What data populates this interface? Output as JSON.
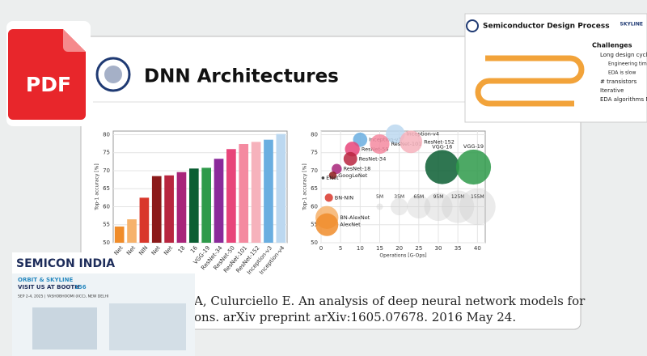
{
  "pdf_icon": {
    "label": "PDF"
  },
  "slide": {
    "title": "DNN Architectures",
    "citation": [
      "A, Culurciello E. An analysis of deep neural network models for",
      "ons. arXiv preprint arXiv:1605.07678. 2016 May 24."
    ]
  },
  "chart_data": [
    {
      "type": "bar",
      "ylabel": "Top-1 accuracy [%]",
      "categories": [
        "Net",
        "Net",
        "NIN",
        "Net",
        "Net",
        "18",
        "16",
        "VGG-19",
        "ResNet-34",
        "ResNet-50",
        "ResNet-101",
        "ResNet-152",
        "Inception-v3",
        "Inception-v4"
      ],
      "values": [
        54.5,
        56.5,
        62.5,
        68.5,
        68.7,
        69.6,
        70.6,
        70.8,
        73.3,
        76.0,
        77.4,
        78.0,
        78.6,
        80.2
      ],
      "colors": [
        "#f08c2a",
        "#f6b26b",
        "#d9372b",
        "#8b1a1a",
        "#b8263f",
        "#a8247a",
        "#0b5e33",
        "#2e9a4a",
        "#8a2a9a",
        "#e8457a",
        "#f48aa0",
        "#f6b2bc",
        "#6aaee0",
        "#bcd8f0"
      ],
      "ylim": [
        50,
        81
      ],
      "yticks": [
        50,
        55,
        60,
        65,
        70,
        75,
        80
      ],
      "grid": true
    },
    {
      "type": "bubble",
      "xlabel": "Operations [G-Ops]",
      "ylabel": "Top-1 accuracy [%]",
      "points": [
        "Inception-v3",
        "Inception-v4",
        "ResNet-50",
        "ResNet-101",
        "ResNet-152",
        "ResNet-34",
        "ResNet-18",
        "GoogLeNet",
        "ENet",
        "BN-NIN",
        "VGG-16",
        "VGG-19",
        "BN-AlexNet",
        "AlexNet"
      ],
      "x": [
        10,
        19,
        8,
        15,
        23,
        7.5,
        4,
        3,
        0.5,
        2,
        31,
        39,
        1.5,
        1.5
      ],
      "y": [
        78.6,
        80.2,
        76,
        77.4,
        78,
        73.3,
        70.5,
        68.7,
        68,
        62.5,
        71,
        71,
        57,
        55
      ],
      "sizes": [
        24,
        43,
        26,
        45,
        60,
        22,
        12,
        7,
        1,
        8,
        138,
        144,
        62,
        61
      ],
      "colors": [
        "#6aaee0",
        "#bcd8f0",
        "#e8457a",
        "#f48aa0",
        "#f6b2bc",
        "#b8263f",
        "#a8247a",
        "#8b1a1a",
        "#222222",
        "#d9372b",
        "#0b5e33",
        "#2e9a4a",
        "#f6b26b",
        "#f08c2a"
      ],
      "legend_sizes": [
        5,
        35,
        65,
        95,
        125,
        155
      ],
      "legend_labels": [
        "5M",
        "35M",
        "65M",
        "95M",
        "125M",
        "155M"
      ],
      "legend_x": [
        15,
        20,
        25,
        30,
        35,
        40
      ],
      "legend_y": 60,
      "xlim": [
        0,
        42
      ],
      "xticks": [
        0,
        5,
        10,
        15,
        20,
        25,
        30,
        35,
        40
      ],
      "ylim": [
        50,
        81
      ],
      "yticks": [
        50,
        55,
        60,
        65,
        70,
        75,
        80
      ],
      "grid": true
    }
  ],
  "inset_slide": {
    "title": "Semiconductor Design Process",
    "logo": "SKYLINE",
    "challenges_title": "Challenges",
    "challenges": [
      "Long design cycle",
      "Engineering time",
      "EDA is slow",
      "# transistors",
      "Iterative",
      "EDA algorithms NP complete"
    ]
  },
  "banner": {
    "brand": "SEMICON INDIA",
    "line1": "ORBIT & SKYLINE",
    "line2": "VISIT US AT BOOTH",
    "booth": "156",
    "dates": "SEP 2-4, 2025 | YASHOBHOOMI (IICC), NEW DELHI"
  }
}
